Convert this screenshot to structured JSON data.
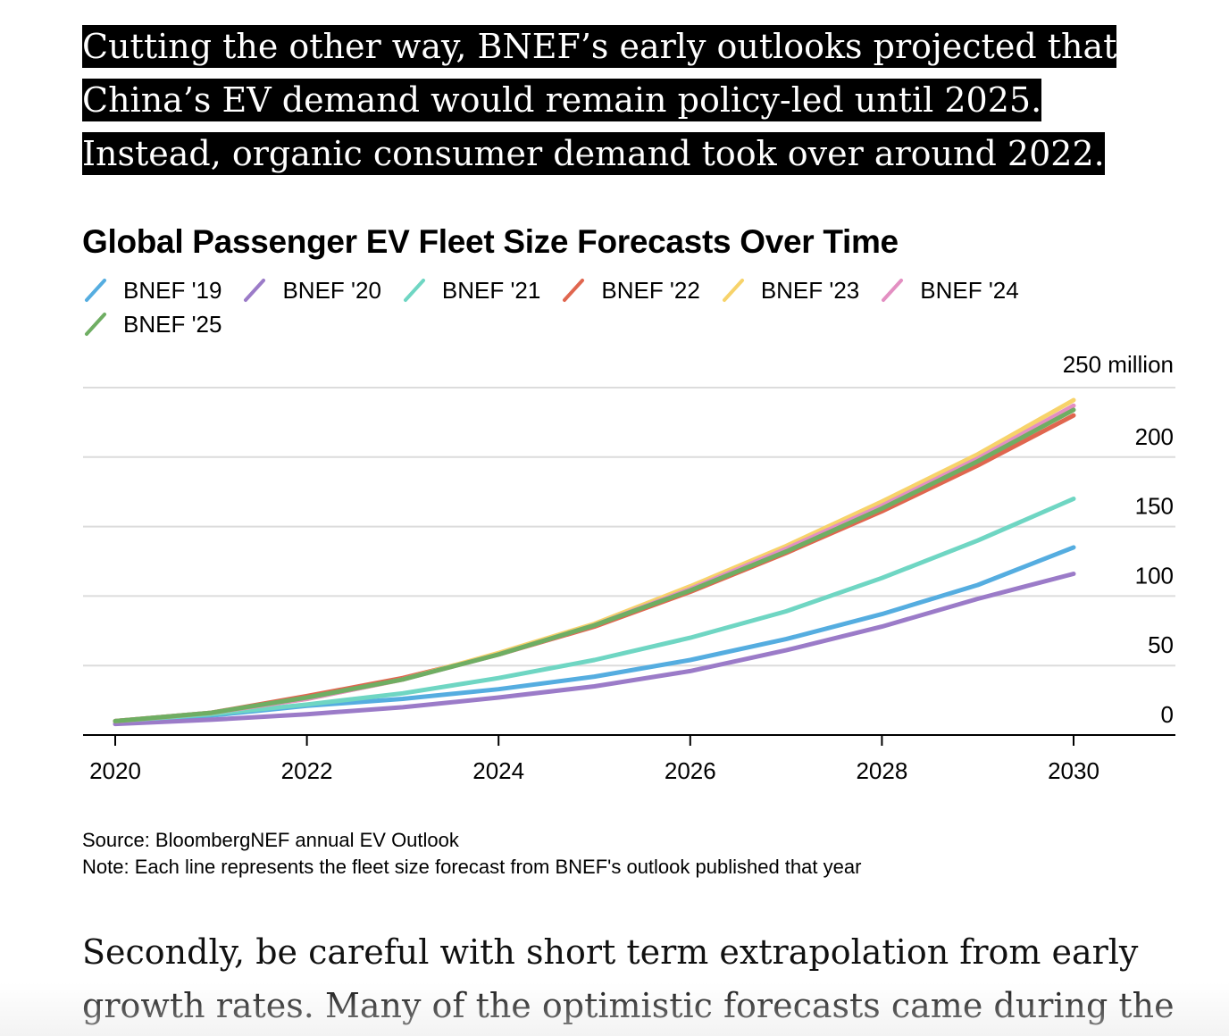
{
  "intro_text": "Cutting the other way, BNEF’s early outlooks projected that China’s EV demand would remain policy-led until 2025. Instead, organic consumer demand took over around 2022.",
  "chart_data": {
    "type": "line",
    "title": "Global Passenger EV Fleet Size Forecasts Over Time",
    "xlabel": "",
    "ylabel": "",
    "y_unit_label": "250 million",
    "x_ticks": [
      2020,
      2022,
      2024,
      2026,
      2028,
      2030
    ],
    "y_ticks": [
      0,
      50,
      100,
      150,
      200
    ],
    "xlim": [
      2020,
      2031
    ],
    "ylim": [
      0,
      250
    ],
    "grid": true,
    "legend_position": "top-left",
    "x": [
      2020,
      2021,
      2022,
      2023,
      2024,
      2025,
      2026,
      2027,
      2028,
      2029,
      2030
    ],
    "series": [
      {
        "name": "BNEF '19",
        "color": "#55ade0",
        "values": [
          10,
          14,
          21,
          26,
          33,
          42,
          54,
          69,
          87,
          108,
          135
        ]
      },
      {
        "name": "BNEF '20",
        "color": "#9b7bc8",
        "values": [
          8,
          11,
          15,
          20,
          27,
          35,
          46,
          61,
          78,
          98,
          116
        ]
      },
      {
        "name": "BNEF '21",
        "color": "#6fd6c3",
        "values": [
          10,
          15,
          22,
          30,
          41,
          54,
          70,
          89,
          113,
          140,
          170
        ]
      },
      {
        "name": "BNEF '22",
        "color": "#e0664f",
        "values": [
          10,
          16,
          28,
          41,
          58,
          78,
          103,
          131,
          161,
          194,
          230
        ]
      },
      {
        "name": "BNEF '23",
        "color": "#f7d36a",
        "values": [
          10,
          16,
          26,
          40,
          59,
          80,
          107,
          136,
          168,
          202,
          241
        ]
      },
      {
        "name": "BNEF '24",
        "color": "#e38fc2",
        "values": [
          10,
          16,
          26,
          40,
          58,
          79,
          105,
          134,
          165,
          199,
          237
        ]
      },
      {
        "name": "BNEF '25",
        "color": "#6fae63",
        "values": [
          10,
          16,
          27,
          40,
          58,
          79,
          104,
          132,
          163,
          197,
          234
        ]
      }
    ]
  },
  "source_line": "Source: BloombergNEF annual EV Outlook",
  "note_line": "Note: Each line represents the fleet size forecast from BNEF's outlook published that year",
  "body_text": "Secondly, be careful with short term extrapolation from early growth rates. Many of the optimistic forecasts came during the"
}
